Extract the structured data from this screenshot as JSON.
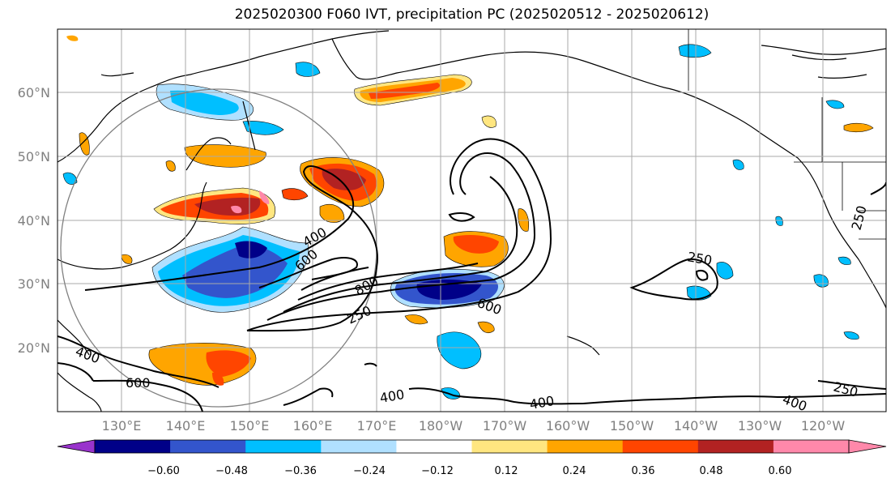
{
  "title": "2025020300 F060 IVT, precipitation PC (2025020512 - 2025020612)",
  "latitude_labels": [
    "60°N",
    "50°N",
    "40°N",
    "30°N",
    "20°N"
  ],
  "longitude_labels": [
    "130°E",
    "140°E",
    "150°E",
    "160°E",
    "170°E",
    "180°W",
    "170°W",
    "160°W",
    "150°W",
    "140°W",
    "130°W",
    "120°W"
  ],
  "contour_labels": [
    "400",
    "600",
    "800",
    "250",
    "600",
    "250",
    "400",
    "600",
    "400",
    "400",
    "250",
    "400",
    "250"
  ],
  "colorbar": {
    "ticks": [
      "−0.60",
      "−0.48",
      "−0.36",
      "−0.24",
      "−0.12",
      "0.12",
      "0.24",
      "0.36",
      "0.48",
      "0.60"
    ],
    "colors": [
      "#9933cc",
      "#000088",
      "#3355cc",
      "#00bfff",
      "#b0e0ff",
      "#ffffff",
      "#ffe680",
      "#ffa500",
      "#ff4500",
      "#b22222",
      "#ff88aa"
    ]
  },
  "colors": {
    "contour": "#000000",
    "coastline": "#000000",
    "gridline": "#aaaaaa",
    "circle": "#808080"
  }
}
